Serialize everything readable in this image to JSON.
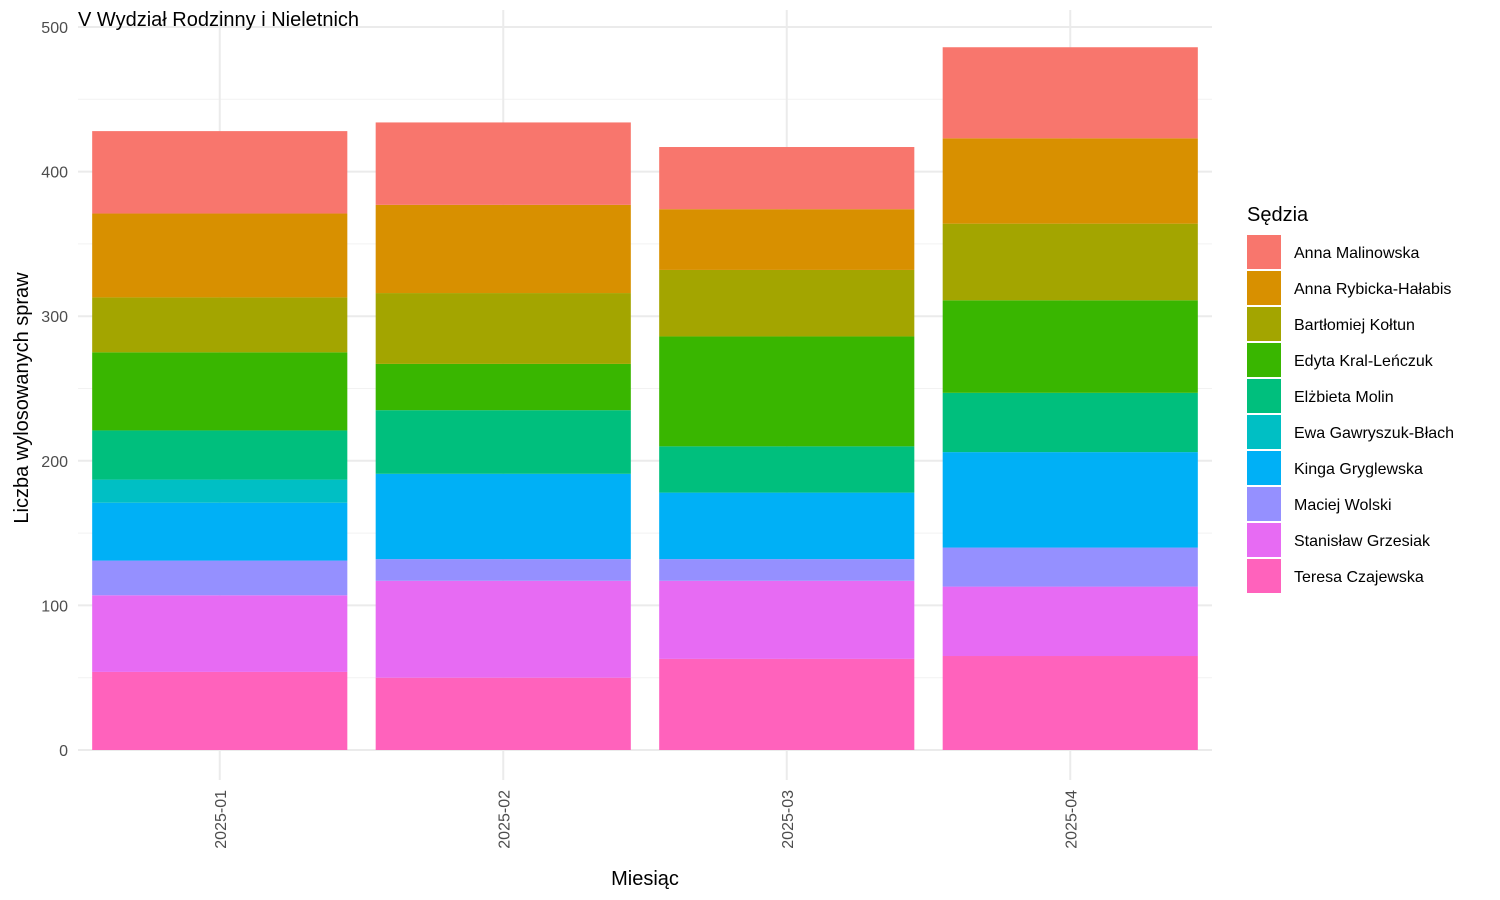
{
  "chart_data": {
    "type": "bar",
    "stacked": true,
    "title": "V Wydział Rodzinny i Nieletnich",
    "xlabel": "Miesiąc",
    "ylabel": "Liczba wylosowanych spraw",
    "ylim": [
      0,
      500
    ],
    "yticks": [
      "0",
      "100",
      "200",
      "300",
      "400",
      "500"
    ],
    "categories": [
      "2025-01",
      "2025-02",
      "2025-03",
      "2025-04"
    ],
    "grid": true,
    "legend": {
      "title": "Sędzia",
      "position": "right"
    },
    "series": [
      {
        "name": "Anna Malinowska",
        "color": "#F8766D",
        "values": [
          57,
          57,
          43,
          63
        ]
      },
      {
        "name": "Anna Rybicka-Hałabis",
        "color": "#D89000",
        "values": [
          58,
          61,
          42,
          59
        ]
      },
      {
        "name": "Bartłomiej Kołtun",
        "color": "#A3A500",
        "values": [
          38,
          49,
          46,
          53
        ]
      },
      {
        "name": "Edyta Kral-Leńczuk",
        "color": "#39B600",
        "values": [
          54,
          32,
          76,
          64
        ]
      },
      {
        "name": "Elżbieta Molin",
        "color": "#00BF7D",
        "values": [
          34,
          44,
          32,
          41
        ]
      },
      {
        "name": "Ewa Gawryszuk-Błach",
        "color": "#00BFC4",
        "values": [
          16,
          0,
          0,
          0
        ]
      },
      {
        "name": "Kinga Gryglewska",
        "color": "#00B0F6",
        "values": [
          40,
          59,
          46,
          66
        ]
      },
      {
        "name": "Maciej Wolski",
        "color": "#9590FF",
        "values": [
          24,
          15,
          15,
          27
        ]
      },
      {
        "name": "Stanisław Grzesiak",
        "color": "#E76BF3",
        "values": [
          53,
          67,
          54,
          48
        ]
      },
      {
        "name": "Teresa Czajewska",
        "color": "#FF62BC",
        "values": [
          54,
          50,
          63,
          65
        ]
      }
    ]
  }
}
